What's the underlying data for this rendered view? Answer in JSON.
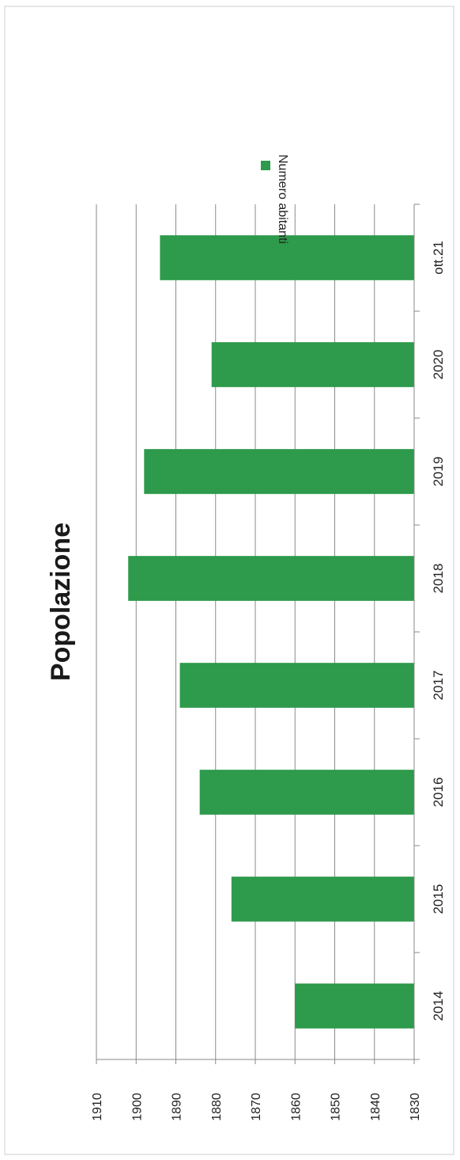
{
  "chart_data": {
    "type": "bar",
    "title": "Popolazione",
    "categories": [
      "2014",
      "2015",
      "2016",
      "2017",
      "2018",
      "2019",
      "2020",
      "ott.21"
    ],
    "series": [
      {
        "name": "Numero abitanti",
        "values": [
          1860,
          1876,
          1884,
          1889,
          1902,
          1898,
          1881,
          1894
        ],
        "color": "#2e9a4b"
      }
    ],
    "ylim": [
      1830,
      1910
    ],
    "yticks": [
      1830,
      1840,
      1850,
      1860,
      1870,
      1880,
      1890,
      1900,
      1910
    ],
    "grid": true,
    "legend": "right",
    "orientation": "rotated 90 degrees clockwise"
  }
}
